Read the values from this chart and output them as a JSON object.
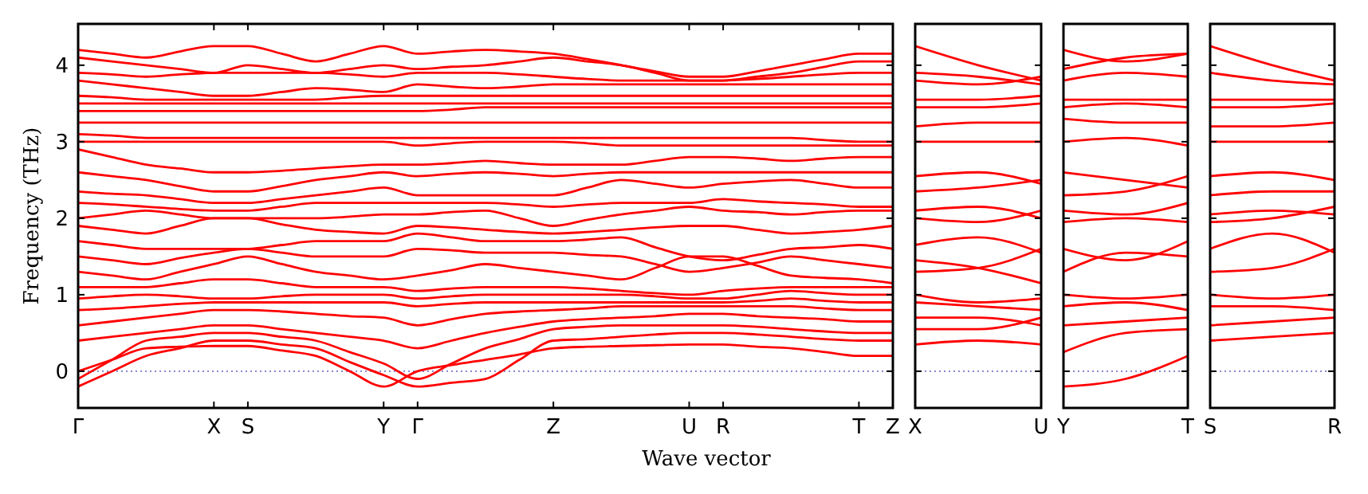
{
  "chart_data": [
    {
      "type": "line",
      "xlabel": "Wave vector",
      "ylabel": "Frequency (THz)",
      "categories": [
        "Γ",
        null,
        null,
        null,
        "X",
        "S",
        null,
        null,
        null,
        "Y",
        "Γ",
        null,
        null,
        null,
        "Z",
        null,
        null,
        null,
        "U",
        "R",
        null,
        null,
        null,
        "T",
        "Z"
      ],
      "ylim": [
        -0.48,
        4.54
      ],
      "yticks": [
        0,
        1,
        2,
        3,
        4
      ],
      "ref_lines": [
        {
          "axis": "y",
          "value": 0,
          "color": "#7777cc",
          "line_style": "dotted"
        }
      ],
      "series": [
        {
          "color": "#ff0000",
          "values": [
            0,
            0.15,
            0.3,
            0.32,
            0.33,
            0.33,
            0.27,
            0.2,
            0,
            -0.2,
            0,
            0.08,
            0.15,
            0.22,
            0.3,
            0.32,
            0.33,
            0.34,
            0.35,
            0.35,
            0.32,
            0.3,
            0.25,
            0.2,
            0.2
          ]
        },
        {
          "color": "#ff0000",
          "values": [
            -0.2,
            0,
            0.2,
            0.3,
            0.4,
            0.4,
            0.35,
            0.3,
            0.12,
            -0.05,
            -0.2,
            -0.15,
            -0.1,
            0.15,
            0.4,
            0.42,
            0.45,
            0.48,
            0.5,
            0.5,
            0.48,
            0.45,
            0.42,
            0.4,
            0.4
          ]
        },
        {
          "color": "#ff0000",
          "values": [
            -0.1,
            0.15,
            0.4,
            0.45,
            0.5,
            0.5,
            0.45,
            0.4,
            0.25,
            0.1,
            -0.1,
            0.1,
            0.3,
            0.42,
            0.55,
            0.58,
            0.6,
            0.6,
            0.6,
            0.6,
            0.58,
            0.55,
            0.52,
            0.5,
            0.5
          ]
        },
        {
          "color": "#ff0000",
          "values": [
            0.4,
            0.45,
            0.5,
            0.55,
            0.6,
            0.6,
            0.55,
            0.5,
            0.45,
            0.4,
            0.3,
            0.4,
            0.5,
            0.58,
            0.65,
            0.68,
            0.7,
            0.72,
            0.75,
            0.75,
            0.72,
            0.7,
            0.68,
            0.65,
            0.65
          ]
        },
        {
          "color": "#ff0000",
          "values": [
            0.6,
            0.65,
            0.7,
            0.75,
            0.8,
            0.8,
            0.78,
            0.75,
            0.72,
            0.7,
            0.6,
            0.68,
            0.75,
            0.78,
            0.8,
            0.82,
            0.85,
            0.85,
            0.85,
            0.85,
            0.85,
            0.85,
            0.82,
            0.8,
            0.8
          ]
        },
        {
          "color": "#ff0000",
          "values": [
            0.8,
            0.82,
            0.85,
            0.88,
            0.9,
            0.9,
            0.9,
            0.9,
            0.9,
            0.9,
            0.85,
            0.88,
            0.9,
            0.9,
            0.9,
            0.9,
            0.9,
            0.9,
            0.9,
            0.9,
            0.92,
            0.95,
            0.92,
            0.9,
            0.9
          ]
        },
        {
          "color": "#ff0000",
          "values": [
            0.95,
            0.98,
            1,
            0.98,
            0.95,
            0.95,
            0.98,
            1,
            1,
            1,
            0.95,
            0.98,
            1,
            1,
            1,
            1,
            1,
            0.98,
            0.95,
            0.95,
            1,
            1.05,
            1.02,
            1,
            1
          ]
        },
        {
          "color": "#ff0000",
          "values": [
            1.1,
            1.1,
            1.1,
            1.15,
            1.2,
            1.2,
            1.15,
            1.1,
            1.1,
            1.1,
            1.05,
            1.08,
            1.1,
            1.1,
            1.1,
            1.08,
            1.05,
            1.02,
            1,
            1.05,
            1.08,
            1.1,
            1.1,
            1.1,
            1.1
          ]
        },
        {
          "color": "#ff0000",
          "values": [
            1.3,
            1.25,
            1.2,
            1.3,
            1.4,
            1.5,
            1.4,
            1.3,
            1.25,
            1.2,
            1.25,
            1.32,
            1.4,
            1.35,
            1.3,
            1.25,
            1.2,
            1.35,
            1.5,
            1.5,
            1.38,
            1.25,
            1.22,
            1.2,
            1.15
          ]
        },
        {
          "color": "#ff0000",
          "values": [
            1.5,
            1.45,
            1.4,
            1.48,
            1.55,
            1.6,
            1.55,
            1.5,
            1.5,
            1.5,
            1.6,
            1.58,
            1.55,
            1.55,
            1.55,
            1.52,
            1.5,
            1.4,
            1.3,
            1.35,
            1.42,
            1.5,
            1.45,
            1.4,
            1.35
          ]
        },
        {
          "color": "#ff0000",
          "values": [
            1.7,
            1.65,
            1.6,
            1.6,
            1.6,
            1.6,
            1.65,
            1.7,
            1.7,
            1.7,
            1.8,
            1.75,
            1.7,
            1.7,
            1.7,
            1.72,
            1.75,
            1.62,
            1.5,
            1.45,
            1.52,
            1.6,
            1.62,
            1.65,
            1.6
          ]
        },
        {
          "color": "#ff0000",
          "values": [
            1.9,
            1.85,
            1.8,
            1.9,
            2,
            2,
            1.92,
            1.85,
            1.82,
            1.8,
            1.9,
            1.88,
            1.85,
            1.82,
            1.8,
            1.82,
            1.85,
            1.88,
            1.9,
            1.9,
            1.85,
            1.8,
            1.82,
            1.85,
            1.9
          ]
        },
        {
          "color": "#ff0000",
          "values": [
            2,
            2.05,
            2.1,
            2.05,
            2,
            2,
            2,
            2,
            2.02,
            2.05,
            2.05,
            2.08,
            2.1,
            2,
            1.9,
            1.98,
            2.05,
            2.1,
            2.15,
            2.1,
            2.08,
            2.05,
            2.08,
            2.1,
            2.1
          ]
        },
        {
          "color": "#ff0000",
          "values": [
            2.2,
            2.18,
            2.15,
            2.12,
            2.1,
            2.1,
            2.15,
            2.2,
            2.2,
            2.2,
            2.2,
            2.2,
            2.2,
            2.18,
            2.15,
            2.18,
            2.2,
            2.2,
            2.2,
            2.25,
            2.22,
            2.2,
            2.18,
            2.15,
            2.15
          ]
        },
        {
          "color": "#ff0000",
          "values": [
            2.35,
            2.32,
            2.3,
            2.25,
            2.2,
            2.2,
            2.25,
            2.3,
            2.35,
            2.4,
            2.3,
            2.3,
            2.3,
            2.3,
            2.3,
            2.4,
            2.5,
            2.45,
            2.4,
            2.45,
            2.48,
            2.5,
            2.45,
            2.4,
            2.4
          ]
        },
        {
          "color": "#ff0000",
          "values": [
            2.6,
            2.55,
            2.5,
            2.42,
            2.35,
            2.35,
            2.42,
            2.5,
            2.55,
            2.6,
            2.55,
            2.58,
            2.6,
            2.58,
            2.55,
            2.58,
            2.6,
            2.6,
            2.6,
            2.6,
            2.6,
            2.6,
            2.6,
            2.6,
            2.6
          ]
        },
        {
          "color": "#ff0000",
          "values": [
            2.9,
            2.8,
            2.7,
            2.65,
            2.6,
            2.6,
            2.62,
            2.65,
            2.68,
            2.7,
            2.7,
            2.72,
            2.75,
            2.72,
            2.7,
            2.7,
            2.7,
            2.75,
            2.8,
            2.8,
            2.78,
            2.75,
            2.78,
            2.8,
            2.8
          ]
        },
        {
          "color": "#ff0000",
          "values": [
            3,
            3,
            3,
            3,
            3,
            3,
            3,
            3,
            3,
            3,
            2.95,
            2.98,
            3,
            3,
            3,
            2.98,
            2.95,
            2.95,
            2.95,
            2.95,
            2.95,
            2.95,
            2.95,
            2.95,
            2.95
          ]
        },
        {
          "color": "#ff0000",
          "values": [
            3.1,
            3.08,
            3.05,
            3.05,
            3.05,
            3.05,
            3.05,
            3.05,
            3.05,
            3.05,
            3.05,
            3.05,
            3.05,
            3.05,
            3.05,
            3.05,
            3.05,
            3.05,
            3.05,
            3.05,
            3.05,
            3.05,
            3.02,
            3,
            3
          ]
        },
        {
          "color": "#ff0000",
          "values": [
            3.25,
            3.25,
            3.25,
            3.25,
            3.25,
            3.25,
            3.25,
            3.25,
            3.25,
            3.25,
            3.25,
            3.25,
            3.25,
            3.25,
            3.25,
            3.25,
            3.25,
            3.25,
            3.25,
            3.25,
            3.25,
            3.25,
            3.25,
            3.25,
            3.25
          ]
        },
        {
          "color": "#ff0000",
          "values": [
            3.4,
            3.4,
            3.4,
            3.4,
            3.4,
            3.4,
            3.4,
            3.4,
            3.4,
            3.4,
            3.4,
            3.42,
            3.45,
            3.45,
            3.45,
            3.45,
            3.45,
            3.45,
            3.45,
            3.45,
            3.45,
            3.45,
            3.45,
            3.45,
            3.45
          ]
        },
        {
          "color": "#ff0000",
          "values": [
            3.5,
            3.5,
            3.5,
            3.5,
            3.5,
            3.5,
            3.5,
            3.5,
            3.5,
            3.5,
            3.5,
            3.5,
            3.5,
            3.5,
            3.5,
            3.5,
            3.5,
            3.5,
            3.5,
            3.5,
            3.5,
            3.5,
            3.5,
            3.5,
            3.5
          ]
        },
        {
          "color": "#ff0000",
          "values": [
            3.6,
            3.58,
            3.55,
            3.55,
            3.55,
            3.55,
            3.55,
            3.55,
            3.58,
            3.6,
            3.6,
            3.6,
            3.6,
            3.6,
            3.6,
            3.6,
            3.6,
            3.6,
            3.6,
            3.6,
            3.6,
            3.6,
            3.6,
            3.6,
            3.6
          ]
        },
        {
          "color": "#ff0000",
          "values": [
            3.8,
            3.75,
            3.7,
            3.65,
            3.6,
            3.6,
            3.65,
            3.7,
            3.68,
            3.65,
            3.75,
            3.72,
            3.7,
            3.72,
            3.75,
            3.75,
            3.75,
            3.75,
            3.75,
            3.75,
            3.75,
            3.75,
            3.75,
            3.75,
            3.75
          ]
        },
        {
          "color": "#ff0000",
          "values": [
            3.9,
            3.88,
            3.85,
            3.88,
            3.9,
            3.9,
            3.9,
            3.9,
            3.88,
            3.85,
            3.9,
            3.9,
            3.9,
            3.88,
            3.85,
            3.82,
            3.8,
            3.8,
            3.8,
            3.8,
            3.82,
            3.85,
            3.88,
            3.9,
            3.9
          ]
        },
        {
          "color": "#ff0000",
          "values": [
            4.1,
            4.05,
            4,
            3.95,
            3.9,
            4,
            3.95,
            3.9,
            3.95,
            4,
            3.95,
            3.98,
            4,
            4.05,
            4.1,
            4.05,
            4,
            3.9,
            3.8,
            3.8,
            3.85,
            3.9,
            3.98,
            4.05,
            4.05
          ]
        },
        {
          "color": "#ff0000",
          "values": [
            4.2,
            4.15,
            4.1,
            4.18,
            4.25,
            4.25,
            4.15,
            4.05,
            4.15,
            4.25,
            4.15,
            4.18,
            4.2,
            4.18,
            4.15,
            4.08,
            4,
            3.92,
            3.85,
            3.85,
            3.92,
            4,
            4.08,
            4.15,
            4.15
          ]
        }
      ]
    },
    {
      "type": "line",
      "categories": [
        "X",
        null,
        "U"
      ],
      "ylim": [
        -0.48,
        4.54
      ],
      "yticks": [
        0,
        1,
        2,
        3,
        4
      ],
      "tick_labels": "x",
      "ref_lines": [
        {
          "axis": "y",
          "value": 0,
          "color": "#7777cc",
          "line_style": "dotted"
        }
      ],
      "series": [
        {
          "color": "#ff0000",
          "values": [
            4.25,
            4,
            3.8
          ]
        },
        {
          "color": "#ff0000",
          "values": [
            3.9,
            3.85,
            3.75
          ]
        },
        {
          "color": "#ff0000",
          "values": [
            3.8,
            3.75,
            3.85
          ]
        },
        {
          "color": "#ff0000",
          "values": [
            3.55,
            3.55,
            3.6
          ]
        },
        {
          "color": "#ff0000",
          "values": [
            3.45,
            3.45,
            3.5
          ]
        },
        {
          "color": "#ff0000",
          "values": [
            3.2,
            3.25,
            3.25
          ]
        },
        {
          "color": "#ff0000",
          "values": [
            3,
            3,
            3
          ]
        },
        {
          "color": "#ff0000",
          "values": [
            2.55,
            2.6,
            2.45
          ]
        },
        {
          "color": "#ff0000",
          "values": [
            2.35,
            2.4,
            2.5
          ]
        },
        {
          "color": "#ff0000",
          "values": [
            2.1,
            2.15,
            2
          ]
        },
        {
          "color": "#ff0000",
          "values": [
            2,
            1.95,
            2.1
          ]
        },
        {
          "color": "#ff0000",
          "values": [
            1.65,
            1.75,
            1.55
          ]
        },
        {
          "color": "#ff0000",
          "values": [
            1.3,
            1.35,
            1.6
          ]
        },
        {
          "color": "#ff0000",
          "values": [
            1.45,
            1.35,
            1.15
          ]
        },
        {
          "color": "#ff0000",
          "values": [
            1,
            0.9,
            0.95
          ]
        },
        {
          "color": "#ff0000",
          "values": [
            0.9,
            0.85,
            0.8
          ]
        },
        {
          "color": "#ff0000",
          "values": [
            0.7,
            0.7,
            0.6
          ]
        },
        {
          "color": "#ff0000",
          "values": [
            0.55,
            0.55,
            0.7
          ]
        },
        {
          "color": "#ff0000",
          "values": [
            0.35,
            0.4,
            0.35
          ]
        }
      ]
    },
    {
      "type": "line",
      "categories": [
        "Y",
        null,
        "T"
      ],
      "ylim": [
        -0.48,
        4.54
      ],
      "yticks": [
        0,
        1,
        2,
        3,
        4
      ],
      "tick_labels": "x",
      "ref_lines": [
        {
          "axis": "y",
          "value": 0,
          "color": "#7777cc",
          "line_style": "dotted"
        }
      ],
      "series": [
        {
          "color": "#ff0000",
          "values": [
            4.2,
            4.05,
            4.15
          ]
        },
        {
          "color": "#ff0000",
          "values": [
            3.95,
            4.1,
            4.15
          ]
        },
        {
          "color": "#ff0000",
          "values": [
            3.8,
            3.9,
            3.85
          ]
        },
        {
          "color": "#ff0000",
          "values": [
            3.55,
            3.55,
            3.55
          ]
        },
        {
          "color": "#ff0000",
          "values": [
            3.45,
            3.5,
            3.45
          ]
        },
        {
          "color": "#ff0000",
          "values": [
            3.3,
            3.25,
            3.25
          ]
        },
        {
          "color": "#ff0000",
          "values": [
            3,
            3.05,
            2.95
          ]
        },
        {
          "color": "#ff0000",
          "values": [
            2.6,
            2.5,
            2.4
          ]
        },
        {
          "color": "#ff0000",
          "values": [
            2.3,
            2.35,
            2.55
          ]
        },
        {
          "color": "#ff0000",
          "values": [
            2.1,
            2.05,
            2.2
          ]
        },
        {
          "color": "#ff0000",
          "values": [
            1.95,
            2,
            1.95
          ]
        },
        {
          "color": "#ff0000",
          "values": [
            1.6,
            1.45,
            1.7
          ]
        },
        {
          "color": "#ff0000",
          "values": [
            1.3,
            1.55,
            1.5
          ]
        },
        {
          "color": "#ff0000",
          "values": [
            1,
            0.95,
            1
          ]
        },
        {
          "color": "#ff0000",
          "values": [
            0.85,
            0.9,
            0.8
          ]
        },
        {
          "color": "#ff0000",
          "values": [
            0.6,
            0.65,
            0.7
          ]
        },
        {
          "color": "#ff0000",
          "values": [
            0.25,
            0.5,
            0.55
          ]
        },
        {
          "color": "#ff0000",
          "values": [
            -0.2,
            -0.1,
            0.2
          ]
        }
      ]
    },
    {
      "type": "line",
      "categories": [
        "S",
        null,
        "R"
      ],
      "ylim": [
        -0.48,
        4.54
      ],
      "yticks": [
        0,
        1,
        2,
        3,
        4
      ],
      "tick_labels": "x",
      "ref_lines": [
        {
          "axis": "y",
          "value": 0,
          "color": "#7777cc",
          "line_style": "dotted"
        }
      ],
      "series": [
        {
          "color": "#ff0000",
          "values": [
            4.25,
            4,
            3.8
          ]
        },
        {
          "color": "#ff0000",
          "values": [
            3.9,
            3.8,
            3.75
          ]
        },
        {
          "color": "#ff0000",
          "values": [
            3.55,
            3.55,
            3.55
          ]
        },
        {
          "color": "#ff0000",
          "values": [
            3.45,
            3.45,
            3.5
          ]
        },
        {
          "color": "#ff0000",
          "values": [
            3.2,
            3.2,
            3.25
          ]
        },
        {
          "color": "#ff0000",
          "values": [
            3,
            3,
            3
          ]
        },
        {
          "color": "#ff0000",
          "values": [
            2.55,
            2.6,
            2.5
          ]
        },
        {
          "color": "#ff0000",
          "values": [
            2.3,
            2.35,
            2.35
          ]
        },
        {
          "color": "#ff0000",
          "values": [
            2.05,
            2.1,
            2.05
          ]
        },
        {
          "color": "#ff0000",
          "values": [
            1.95,
            2,
            2.15
          ]
        },
        {
          "color": "#ff0000",
          "values": [
            1.6,
            1.8,
            1.55
          ]
        },
        {
          "color": "#ff0000",
          "values": [
            1.3,
            1.35,
            1.6
          ]
        },
        {
          "color": "#ff0000",
          "values": [
            1,
            0.95,
            1
          ]
        },
        {
          "color": "#ff0000",
          "values": [
            0.85,
            0.85,
            0.8
          ]
        },
        {
          "color": "#ff0000",
          "values": [
            0.6,
            0.65,
            0.7
          ]
        },
        {
          "color": "#ff0000",
          "values": [
            0.4,
            0.45,
            0.5
          ]
        }
      ]
    }
  ]
}
